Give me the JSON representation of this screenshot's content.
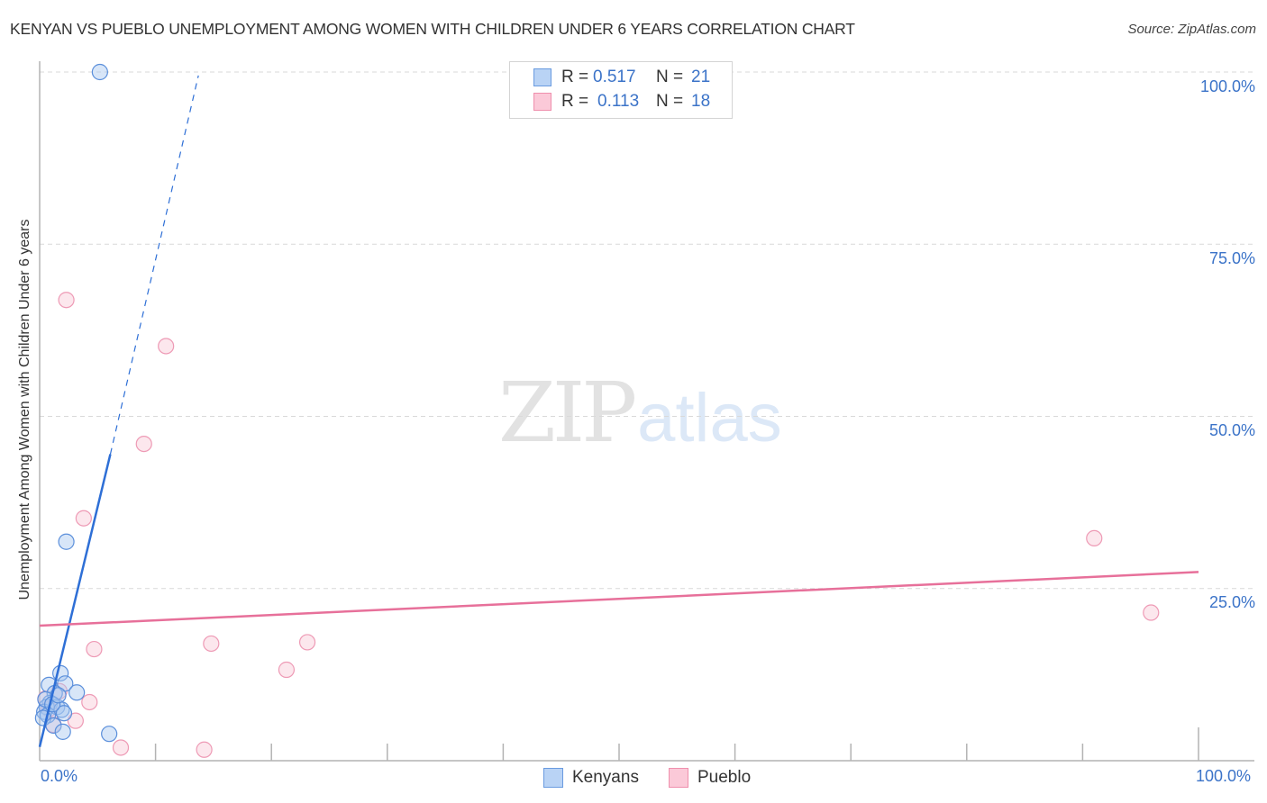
{
  "header": {
    "title": "KENYAN VS PUEBLO UNEMPLOYMENT AMONG WOMEN WITH CHILDREN UNDER 6 YEARS CORRELATION CHART",
    "source": "Source: ZipAtlas.com"
  },
  "watermark": {
    "zip": "ZIP",
    "atlas": "atlas"
  },
  "axes": {
    "ylabel": "Unemployment Among Women with Children Under 6 years",
    "y_ticks": [
      "100.0%",
      "75.0%",
      "50.0%",
      "25.0%"
    ],
    "x_ticks": [
      "0.0%",
      "100.0%"
    ]
  },
  "legend": {
    "rows": [
      {
        "series": "Kenyans",
        "r_label": "R =",
        "r_value": "0.517",
        "n_label": "N =",
        "n_value": "21",
        "color": "#a8c8f0",
        "border": "#6a9be0"
      },
      {
        "series": "Pueblo",
        "r_label": "R =",
        "r_value": "0.113",
        "n_label": "N =",
        "n_value": "18",
        "color": "#f9c4d3",
        "border": "#ef8fad"
      }
    ]
  },
  "bottom_legend": {
    "items": [
      "Kenyans",
      "Pueblo"
    ]
  },
  "colors": {
    "kenyans_fill": "#a8c8f0",
    "kenyans_stroke": "#5b8fdb",
    "kenyans_line": "#2e6fd6",
    "pueblo_fill": "#f9c9d7",
    "pueblo_stroke": "#ee9ab5",
    "pueblo_line": "#e7709a",
    "tick_label": "#3b73c8"
  },
  "chart_data": {
    "type": "scatter",
    "title": "KENYAN VS PUEBLO UNEMPLOYMENT AMONG WOMEN WITH CHILDREN UNDER 6 YEARS CORRELATION CHART",
    "xlabel": "",
    "ylabel": "Unemployment Among Women with Children Under 6 years",
    "xlim": [
      0,
      100
    ],
    "ylim": [
      0,
      100
    ],
    "x_tick_labels": [
      "0.0%",
      "100.0%"
    ],
    "y_tick_labels": [
      "25.0%",
      "50.0%",
      "75.0%",
      "100.0%"
    ],
    "grid": "horizontal dashed",
    "legend_position": "top-center and bottom",
    "series": [
      {
        "name": "Kenyans",
        "R": 0.517,
        "N": 21,
        "points": [
          [
            5.2,
            100.0
          ],
          [
            2.3,
            31.8
          ],
          [
            1.8,
            12.7
          ],
          [
            0.8,
            11.0
          ],
          [
            2.2,
            11.2
          ],
          [
            3.2,
            9.9
          ],
          [
            1.3,
            9.8
          ],
          [
            0.9,
            8.4
          ],
          [
            0.6,
            7.8
          ],
          [
            0.4,
            7.1
          ],
          [
            1.5,
            7.8
          ],
          [
            1.9,
            7.4
          ],
          [
            0.7,
            6.6
          ],
          [
            0.3,
            6.2
          ],
          [
            2.1,
            6.9
          ],
          [
            1.2,
            5.1
          ],
          [
            2.0,
            4.2
          ],
          [
            6.0,
            3.9
          ],
          [
            0.5,
            8.9
          ],
          [
            1.1,
            8.2
          ],
          [
            1.6,
            9.5
          ]
        ],
        "trend": {
          "x0": 0,
          "y0": 2.0,
          "x1": 6.1,
          "y1": 44.5,
          "dashed_extension_to": [
            13.7,
            99.5
          ]
        }
      },
      {
        "name": "Pueblo",
        "R": 0.113,
        "N": 18,
        "points": [
          [
            2.3,
            66.9
          ],
          [
            10.9,
            60.2
          ],
          [
            9.0,
            46.0
          ],
          [
            3.8,
            35.2
          ],
          [
            91.0,
            32.3
          ],
          [
            95.9,
            21.5
          ],
          [
            14.8,
            17.0
          ],
          [
            23.1,
            17.2
          ],
          [
            4.7,
            16.2
          ],
          [
            21.3,
            13.2
          ],
          [
            1.7,
            10.1
          ],
          [
            4.3,
            8.5
          ],
          [
            0.5,
            9.0
          ],
          [
            3.1,
            5.8
          ],
          [
            1.2,
            5.2
          ],
          [
            7.0,
            1.9
          ],
          [
            14.2,
            1.6
          ],
          [
            0.8,
            7.5
          ]
        ],
        "trend": {
          "x0": 0,
          "y0": 19.6,
          "x1": 100,
          "y1": 27.4
        }
      }
    ]
  }
}
